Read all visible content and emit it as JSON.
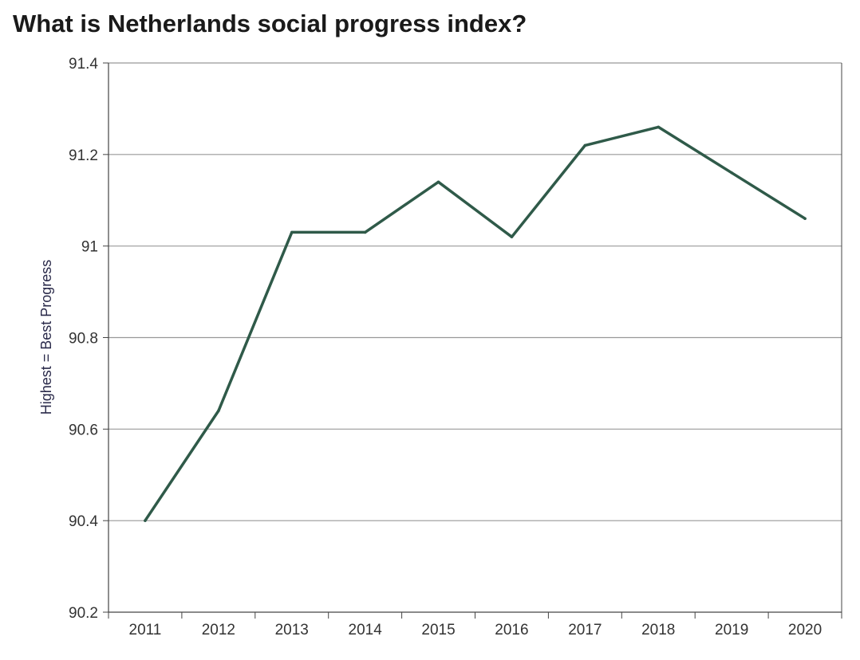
{
  "chart_data": {
    "type": "line",
    "title": "What is Netherlands social progress index?",
    "xlabel": "",
    "ylabel": "Highest = Best Progress",
    "categories": [
      "2011",
      "2012",
      "2013",
      "2014",
      "2015",
      "2016",
      "2017",
      "2018",
      "2019",
      "2020"
    ],
    "series": [
      {
        "values": [
          90.4,
          90.64,
          91.03,
          91.03,
          91.14,
          91.02,
          91.22,
          91.26,
          91.16,
          91.06
        ],
        "color": "#2f5a49"
      }
    ],
    "ylim": [
      90.2,
      91.4
    ],
    "yticks": [
      90.2,
      90.4,
      90.6,
      90.8,
      91,
      91.2,
      91.4
    ],
    "ytick_labels": [
      "90.2",
      "90.4",
      "90.6",
      "90.8",
      "91",
      "91.2",
      "91.4"
    ],
    "grid": "horizontal",
    "legend": "none",
    "gridline_color": "#999999",
    "axis_color": "#444444"
  }
}
